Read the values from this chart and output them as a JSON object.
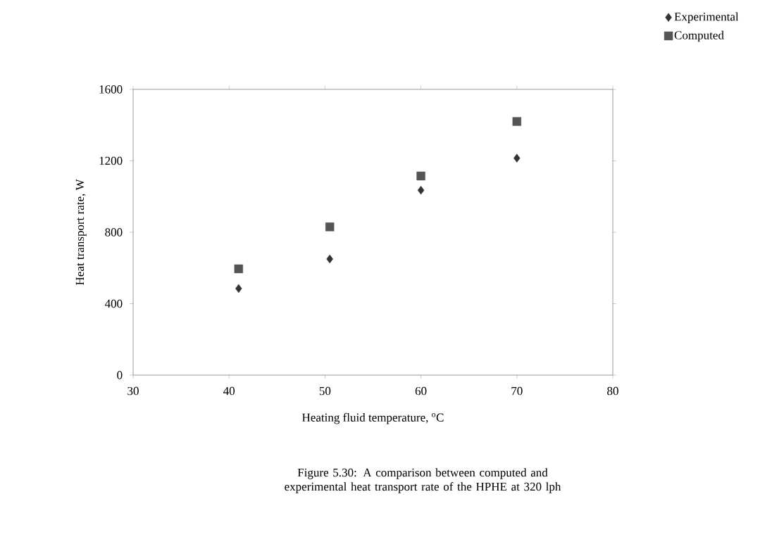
{
  "chart_data": {
    "type": "scatter",
    "xlabel": "Heating fluid temperature, $^{o}$C",
    "ylabel": "Heat transport rate, W",
    "x": [
      41,
      50.5,
      60,
      70
    ],
    "series": [
      {
        "name": "Experimental",
        "color": "#333333",
        "marker": "diamond",
        "values": [
          485,
          650,
          1035,
          1215
        ]
      },
      {
        "name": "Computed",
        "color": "#555555",
        "marker": "square",
        "values": [
          595,
          830,
          1115,
          1420
        ]
      }
    ],
    "xlim": [
      30,
      80
    ],
    "ylim": [
      0,
      1600
    ],
    "xticks": [
      30,
      40,
      50,
      60,
      70,
      80
    ],
    "yticks": [
      0,
      400,
      800,
      1200,
      1600
    ],
    "grid": false,
    "legend": "top right",
    "annotations": [
      "Figure 5.30: A comparison between computed and experimental heat transport rate of the HPHE at 320 lph"
    ]
  }
}
